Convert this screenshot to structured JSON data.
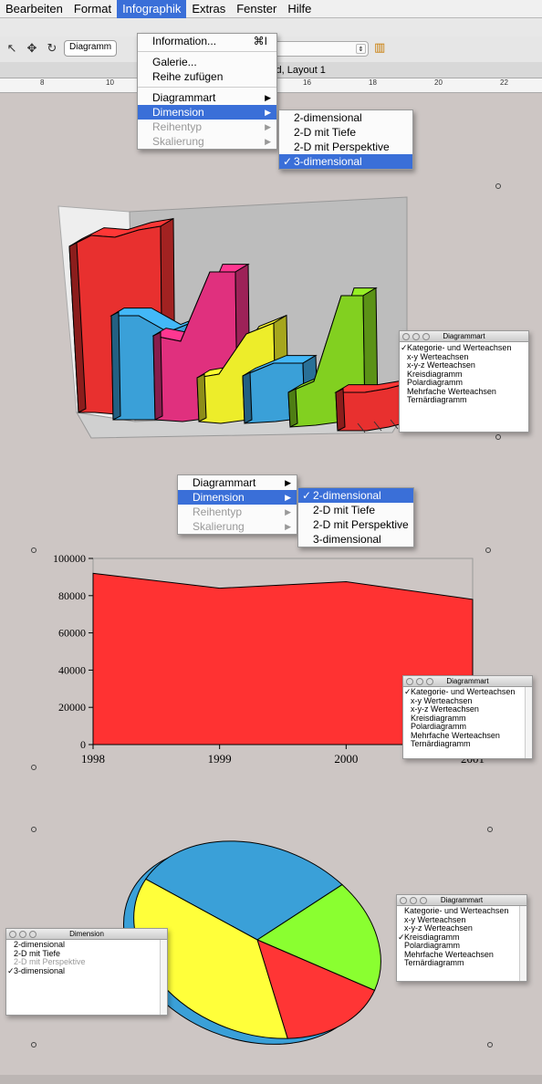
{
  "menubar": {
    "items": [
      "Bearbeiten",
      "Format",
      "Infographik",
      "Extras",
      "Fenster",
      "Hilfe"
    ],
    "active": "Infographik"
  },
  "toolbar": {
    "combo": "Diagramm"
  },
  "window": {
    "title": "Rage4-Bag-4d, Layout 1"
  },
  "ruler": {
    "ticks": [
      "8",
      "10",
      "12",
      "14",
      "16",
      "18",
      "20",
      "22"
    ]
  },
  "menu1": {
    "items": [
      {
        "label": "Information...",
        "shortcut": "⌘I"
      },
      {
        "label": "Galerie..."
      },
      {
        "label": "Reihe zufügen"
      },
      {
        "label": "Diagrammart",
        "submenu": true
      },
      {
        "label": "Dimension",
        "submenu": true,
        "selected": true
      },
      {
        "label": "Reihentyp",
        "submenu": true,
        "disabled": true
      },
      {
        "label": "Skalierung",
        "submenu": true,
        "disabled": true
      }
    ],
    "submenu": [
      "2-dimensional",
      "2-D mit Tiefe",
      "2-D mit Perspektive",
      "3-dimensional"
    ],
    "submenu_checked": "3-dimensional"
  },
  "menu2": {
    "items": [
      {
        "label": "Diagrammart",
        "submenu": true
      },
      {
        "label": "Dimension",
        "submenu": true,
        "selected": true
      },
      {
        "label": "Reihentyp",
        "submenu": true,
        "disabled": true
      },
      {
        "label": "Skalierung",
        "submenu": true,
        "disabled": true
      }
    ],
    "submenu": [
      "2-dimensional",
      "2-D mit Tiefe",
      "2-D mit Perspektive",
      "3-dimensional"
    ],
    "submenu_checked": "2-dimensional"
  },
  "palette_types": {
    "title": "Diagrammart",
    "items": [
      "Kategorie- und Werteachsen",
      "x-y Werteachsen",
      "x-y-z Werteachsen",
      "Kreisdiagramm",
      "Polardiagramm",
      "Mehrfache Werteachsen",
      "Ternärdiagramm"
    ]
  },
  "palette1_checked": "Kategorie- und Werteachsen",
  "palette2_checked": "Kategorie- und Werteachsen",
  "palette3_checked": "Kreisdiagramm",
  "palette_dim": {
    "title": "Dimension",
    "items": [
      "2-dimensional",
      "2-D mit Tiefe",
      "2-D mit Perspektive",
      "3-dimensional"
    ],
    "checked": "3-dimensional",
    "disabled": "2-D mit Perspektive"
  },
  "checkmark": "✓",
  "colors": {
    "red": "#e8302f",
    "blue": "#3aa0d8",
    "magenta": "#e0307e",
    "yellow": "#eded2a",
    "green": "#82d020"
  },
  "chart_data": [
    {
      "type": "bar",
      "dimension": "3-dimensional"
    },
    {
      "type": "area",
      "x": [
        1998,
        1999,
        2000,
        2001
      ],
      "values": [
        92000,
        84000,
        87500,
        78000
      ],
      "ylim": [
        0,
        100000
      ],
      "yticks": [
        "0",
        "20000",
        "40000",
        "60000",
        "80000",
        "100000"
      ],
      "xticks": [
        "1998",
        "1999",
        "2000",
        "2001"
      ]
    },
    {
      "type": "pie",
      "dimension": "3-dimensional",
      "values": [
        30,
        18,
        16,
        36
      ],
      "colors": [
        "#3aa0d8",
        "#8aff30",
        "#ff3535",
        "#ffff3a"
      ]
    }
  ]
}
